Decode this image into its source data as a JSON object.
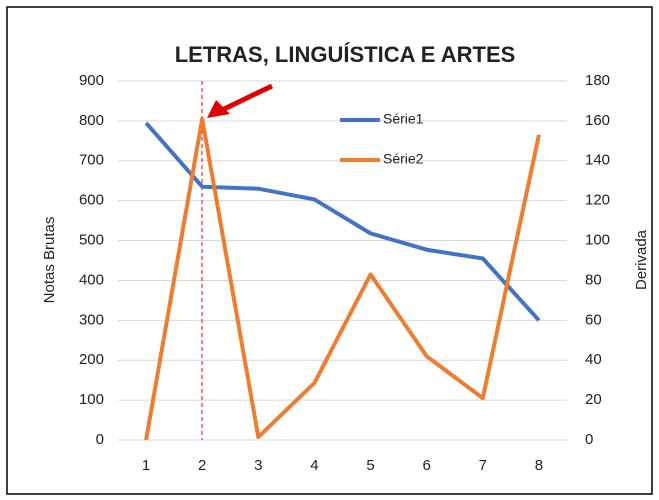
{
  "chart_data": {
    "type": "line",
    "title": "LETRAS, LINGUÍSTICA E ARTES",
    "y_label": "Notas Brutas",
    "y2_label": "Derivada",
    "categories": [
      "1",
      "2",
      "3",
      "4",
      "5",
      "6",
      "7",
      "8"
    ],
    "series": [
      {
        "name": "Série1",
        "color": "#4472c4",
        "values": [
          795,
          635,
          630,
          603,
          518,
          477,
          455,
          300
        ]
      },
      {
        "name": "Série2",
        "color": "#ed7d31",
        "axis": "y2",
        "values": [
          0,
          161,
          1.5,
          28.6,
          83,
          42,
          21,
          153
        ]
      }
    ],
    "ylim": [
      0,
      900
    ],
    "yticks": [
      0,
      100,
      200,
      300,
      400,
      500,
      600,
      700,
      800,
      900
    ],
    "y2lim": [
      0,
      180
    ],
    "y2ticks": [
      0,
      20,
      40,
      60,
      80,
      100,
      120,
      140,
      160,
      180
    ],
    "grid": true
  }
}
